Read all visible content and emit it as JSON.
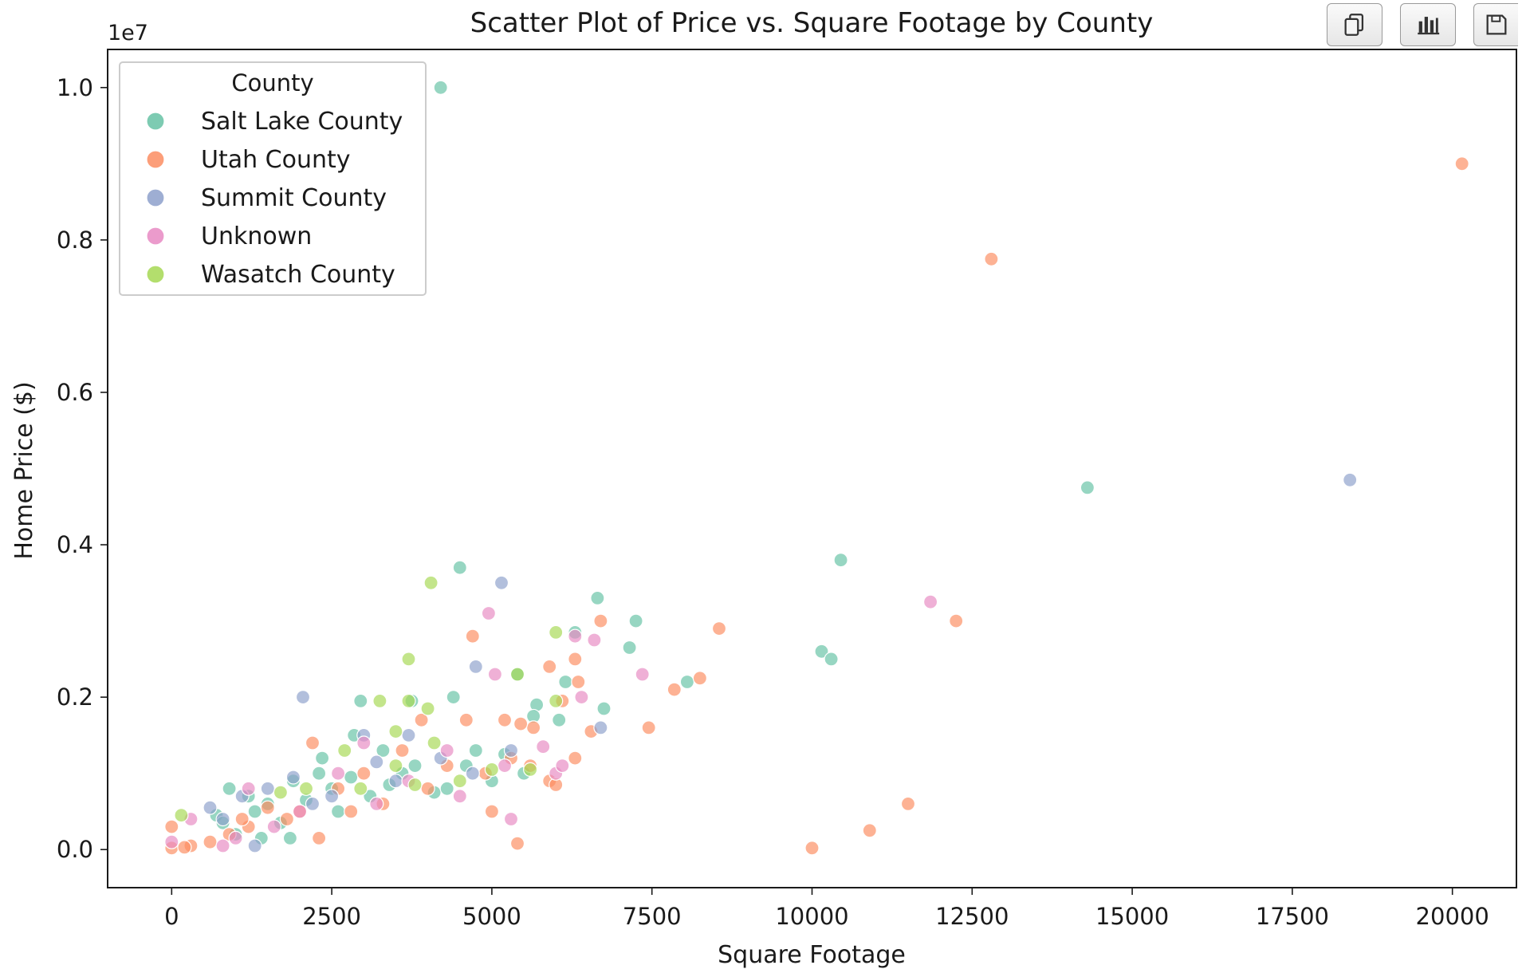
{
  "chart_data": {
    "type": "scatter",
    "title": "Scatter Plot of Price vs. Square Footage by County",
    "xlabel": "Square Footage",
    "ylabel": "Home Price ($)",
    "y_offset_label": "1e7",
    "xlim": [
      -1000,
      21000
    ],
    "ylim": [
      -500000,
      10500000
    ],
    "xticks": [
      0,
      2500,
      5000,
      7500,
      10000,
      12500,
      15000,
      17500,
      20000
    ],
    "xtick_labels": [
      "0",
      "2500",
      "5000",
      "7500",
      "10000",
      "12500",
      "15000",
      "17500",
      "20000"
    ],
    "yticks": [
      0,
      2000000,
      4000000,
      6000000,
      8000000,
      10000000
    ],
    "ytick_labels": [
      "0.0",
      "0.2",
      "0.4",
      "0.6",
      "0.8",
      "1.0"
    ],
    "grid": false,
    "legend": {
      "title": "County",
      "placement": "top-left"
    },
    "series": [
      {
        "name": "Salt Lake County",
        "color": "#66c2a5",
        "points": [
          [
            4200,
            10000000
          ],
          [
            14300,
            4750000
          ],
          [
            10450,
            3800000
          ],
          [
            4500,
            3700000
          ],
          [
            6650,
            3300000
          ],
          [
            7250,
            3000000
          ],
          [
            6300,
            2850000
          ],
          [
            10150,
            2600000
          ],
          [
            10300,
            2500000
          ],
          [
            7150,
            2650000
          ],
          [
            8050,
            2200000
          ],
          [
            6150,
            2200000
          ],
          [
            4400,
            2000000
          ],
          [
            2950,
            1950000
          ],
          [
            3750,
            1950000
          ],
          [
            5400,
            2300000
          ],
          [
            5700,
            1900000
          ],
          [
            6750,
            1850000
          ],
          [
            6050,
            1700000
          ],
          [
            5650,
            1750000
          ],
          [
            2850,
            1500000
          ],
          [
            2350,
            1200000
          ],
          [
            4750,
            1300000
          ],
          [
            5200,
            1250000
          ],
          [
            3300,
            1300000
          ],
          [
            1900,
            900000
          ],
          [
            900,
            800000
          ],
          [
            1200,
            700000
          ],
          [
            1500,
            600000
          ],
          [
            700,
            450000
          ],
          [
            1300,
            500000
          ],
          [
            2100,
            650000
          ],
          [
            2500,
            800000
          ],
          [
            2800,
            950000
          ],
          [
            3100,
            700000
          ],
          [
            3600,
            1000000
          ],
          [
            4100,
            750000
          ],
          [
            4600,
            1100000
          ],
          [
            5000,
            900000
          ],
          [
            5500,
            1000000
          ],
          [
            1000,
            200000
          ],
          [
            1400,
            150000
          ],
          [
            1850,
            150000
          ],
          [
            800,
            350000
          ],
          [
            2300,
            1000000
          ],
          [
            4300,
            800000
          ],
          [
            3800,
            1100000
          ],
          [
            2600,
            500000
          ],
          [
            1700,
            350000
          ],
          [
            3400,
            850000
          ]
        ]
      },
      {
        "name": "Utah County",
        "color": "#fc8d62",
        "points": [
          [
            20150,
            9000000
          ],
          [
            12800,
            7750000
          ],
          [
            12250,
            3000000
          ],
          [
            8550,
            2900000
          ],
          [
            6700,
            3000000
          ],
          [
            4700,
            2800000
          ],
          [
            8250,
            2250000
          ],
          [
            7850,
            2100000
          ],
          [
            5900,
            2400000
          ],
          [
            6300,
            2500000
          ],
          [
            7450,
            1600000
          ],
          [
            6550,
            1550000
          ],
          [
            6350,
            2200000
          ],
          [
            6100,
            1950000
          ],
          [
            5200,
            1700000
          ],
          [
            5650,
            1600000
          ],
          [
            5450,
            1650000
          ],
          [
            4600,
            1700000
          ],
          [
            3900,
            1700000
          ],
          [
            2200,
            1400000
          ],
          [
            11500,
            600000
          ],
          [
            10900,
            250000
          ],
          [
            10000,
            20000
          ],
          [
            5400,
            80000
          ],
          [
            5300,
            1200000
          ],
          [
            5000,
            500000
          ],
          [
            5900,
            900000
          ],
          [
            6000,
            850000
          ],
          [
            5600,
            1100000
          ],
          [
            4900,
            1000000
          ],
          [
            4300,
            1100000
          ],
          [
            3600,
            1300000
          ],
          [
            3000,
            1000000
          ],
          [
            2600,
            800000
          ],
          [
            2300,
            150000
          ],
          [
            1800,
            400000
          ],
          [
            1500,
            550000
          ],
          [
            1200,
            300000
          ],
          [
            900,
            200000
          ],
          [
            600,
            100000
          ],
          [
            300,
            50000
          ],
          [
            0,
            300000
          ],
          [
            0,
            20000
          ],
          [
            200,
            30000
          ],
          [
            1100,
            400000
          ],
          [
            2000,
            500000
          ],
          [
            2800,
            500000
          ],
          [
            3300,
            600000
          ],
          [
            4000,
            800000
          ],
          [
            6300,
            1200000
          ]
        ]
      },
      {
        "name": "Summit County",
        "color": "#8da0cb",
        "points": [
          [
            18400,
            4850000
          ],
          [
            5150,
            3500000
          ],
          [
            4750,
            2400000
          ],
          [
            2050,
            2000000
          ],
          [
            6700,
            1600000
          ],
          [
            3700,
            1500000
          ],
          [
            3000,
            1500000
          ],
          [
            1900,
            950000
          ],
          [
            1500,
            800000
          ],
          [
            1100,
            700000
          ],
          [
            600,
            550000
          ],
          [
            1300,
            50000
          ],
          [
            2500,
            700000
          ],
          [
            3500,
            900000
          ],
          [
            4200,
            1200000
          ],
          [
            4700,
            1000000
          ],
          [
            3200,
            1150000
          ],
          [
            2200,
            600000
          ],
          [
            5300,
            1300000
          ],
          [
            800,
            400000
          ]
        ]
      },
      {
        "name": "Unknown",
        "color": "#e78ac3",
        "points": [
          [
            11850,
            3250000
          ],
          [
            4950,
            3100000
          ],
          [
            6600,
            2750000
          ],
          [
            6300,
            2800000
          ],
          [
            7350,
            2300000
          ],
          [
            5050,
            2300000
          ],
          [
            6400,
            2000000
          ],
          [
            5300,
            400000
          ],
          [
            6000,
            1000000
          ],
          [
            5800,
            1350000
          ],
          [
            3000,
            1400000
          ],
          [
            4500,
            700000
          ],
          [
            3200,
            600000
          ],
          [
            2000,
            500000
          ],
          [
            1000,
            150000
          ],
          [
            800,
            50000
          ],
          [
            0,
            100000
          ],
          [
            300,
            400000
          ],
          [
            1200,
            800000
          ],
          [
            2600,
            1000000
          ],
          [
            3700,
            900000
          ],
          [
            4300,
            1300000
          ],
          [
            5200,
            1100000
          ],
          [
            1600,
            300000
          ],
          [
            6100,
            1100000
          ]
        ]
      },
      {
        "name": "Wasatch County",
        "color": "#a6d854",
        "points": [
          [
            4050,
            3500000
          ],
          [
            3700,
            2500000
          ],
          [
            6000,
            2850000
          ],
          [
            5400,
            2300000
          ],
          [
            3250,
            1950000
          ],
          [
            3700,
            1950000
          ],
          [
            6000,
            1950000
          ],
          [
            4000,
            1850000
          ],
          [
            3500,
            1550000
          ],
          [
            2700,
            1300000
          ],
          [
            4100,
            1400000
          ],
          [
            2100,
            800000
          ],
          [
            1700,
            750000
          ],
          [
            150,
            450000
          ],
          [
            2950,
            800000
          ],
          [
            3500,
            1100000
          ],
          [
            5000,
            1050000
          ],
          [
            5600,
            1050000
          ],
          [
            4500,
            900000
          ],
          [
            3800,
            850000
          ]
        ]
      }
    ]
  },
  "toolbar": {
    "buttons": [
      "copy-icon",
      "bar-chart-icon",
      "save-icon"
    ]
  }
}
